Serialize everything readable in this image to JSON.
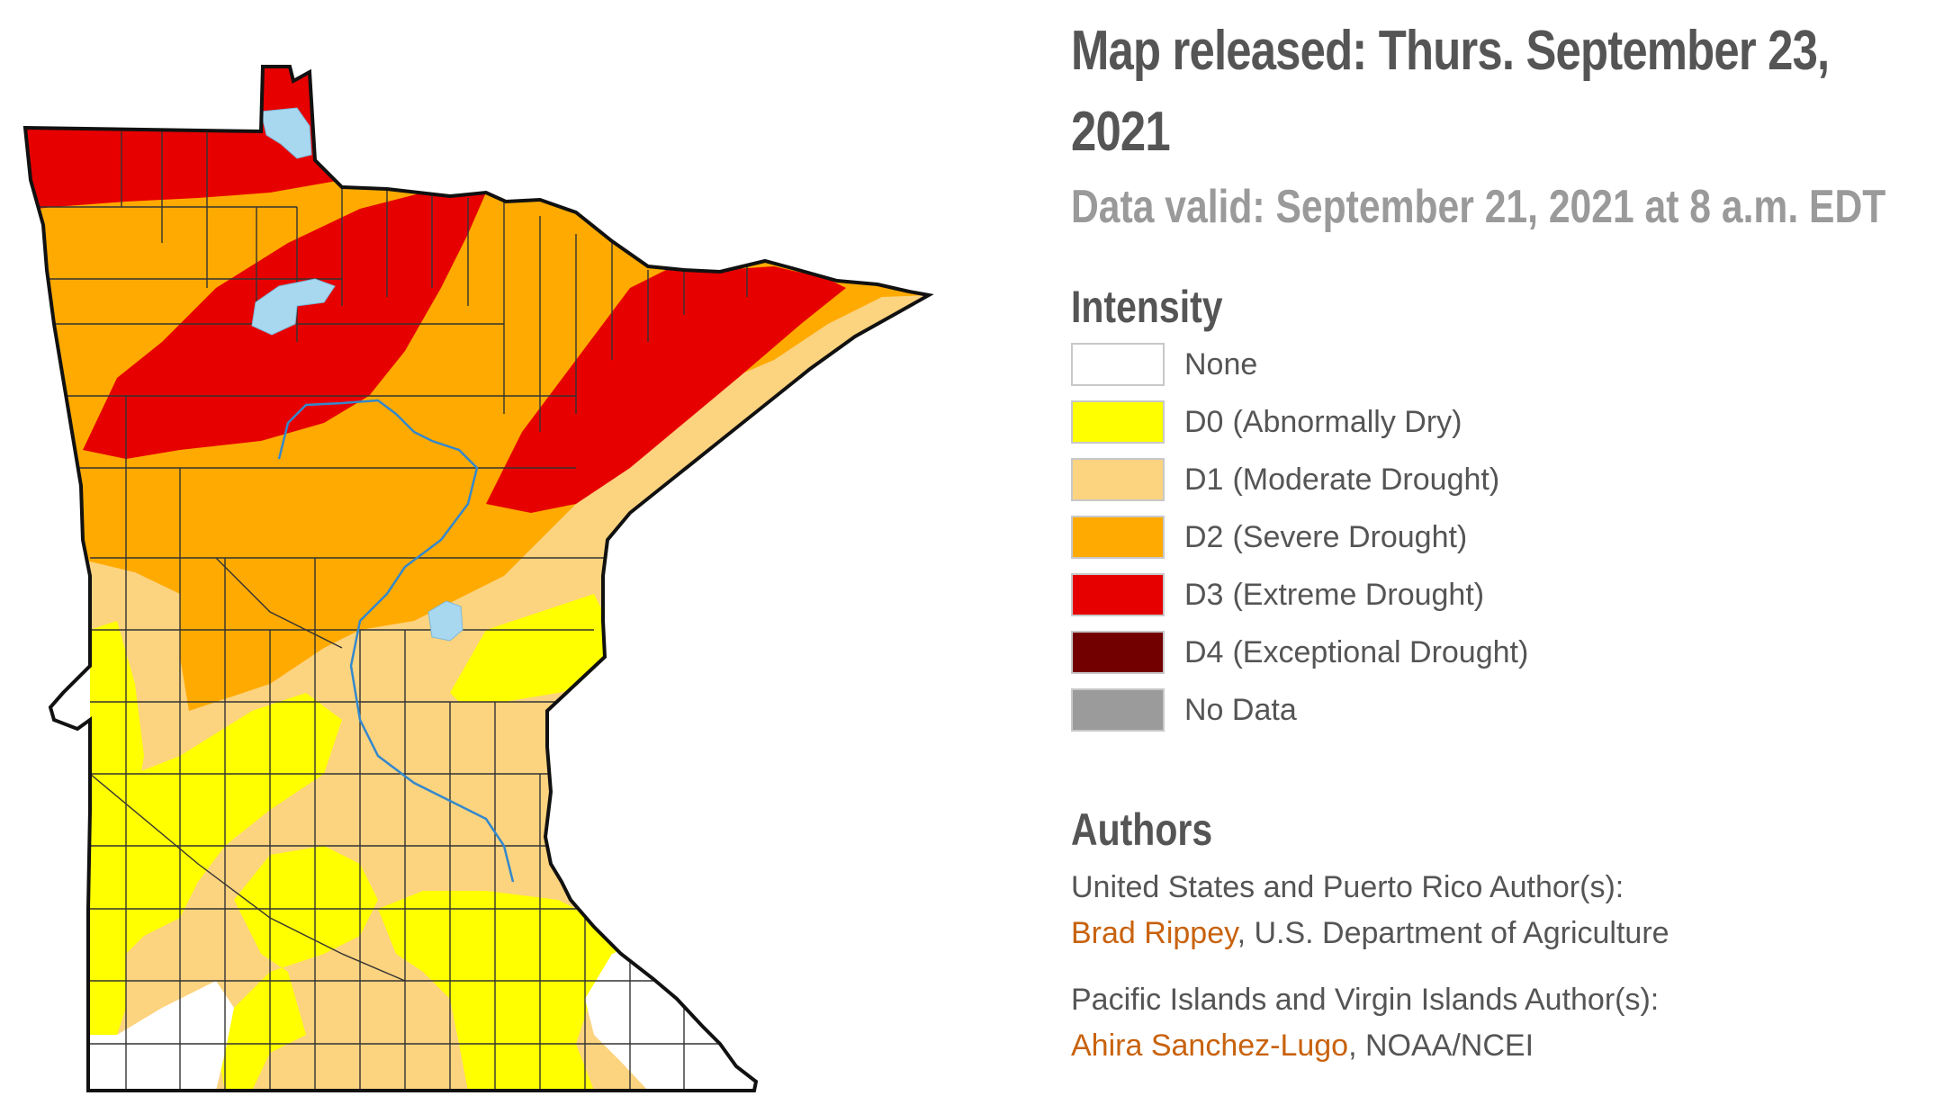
{
  "header": {
    "title_line1": "Map released: Thurs. September 23,",
    "title_line2": "2021",
    "data_valid": "Data valid: September 21, 2021 at 8 a.m. EDT"
  },
  "legend": {
    "heading": "Intensity",
    "items": [
      {
        "code": "None",
        "desc": "",
        "color": "#ffffff"
      },
      {
        "code": "D0",
        "desc": "(Abnormally Dry)",
        "color": "#ffff00"
      },
      {
        "code": "D1",
        "desc": "(Moderate Drought)",
        "color": "#fcd37f"
      },
      {
        "code": "D2",
        "desc": "(Severe Drought)",
        "color": "#ffaa00"
      },
      {
        "code": "D3",
        "desc": "(Extreme Drought)",
        "color": "#e60000"
      },
      {
        "code": "D4",
        "desc": "(Exceptional Drought)",
        "color": "#730000"
      },
      {
        "code": "No Data",
        "desc": "",
        "color": "#9b9b9b"
      }
    ]
  },
  "authors": {
    "heading": "Authors",
    "us_label": "United States and Puerto Rico Author(s):",
    "us_name": "Brad Rippey",
    "us_org": ", U.S. Department of Agriculture",
    "pacific_label": "Pacific Islands and Virgin Islands Author(s):",
    "pacific_name": "Ahira Sanchez-Lugo",
    "pacific_org": ", NOAA/NCEI"
  },
  "map": {
    "region": "Minnesota",
    "water_color": "#a8d8f0",
    "river_color": "#3388cc",
    "border_color": "#111111"
  }
}
